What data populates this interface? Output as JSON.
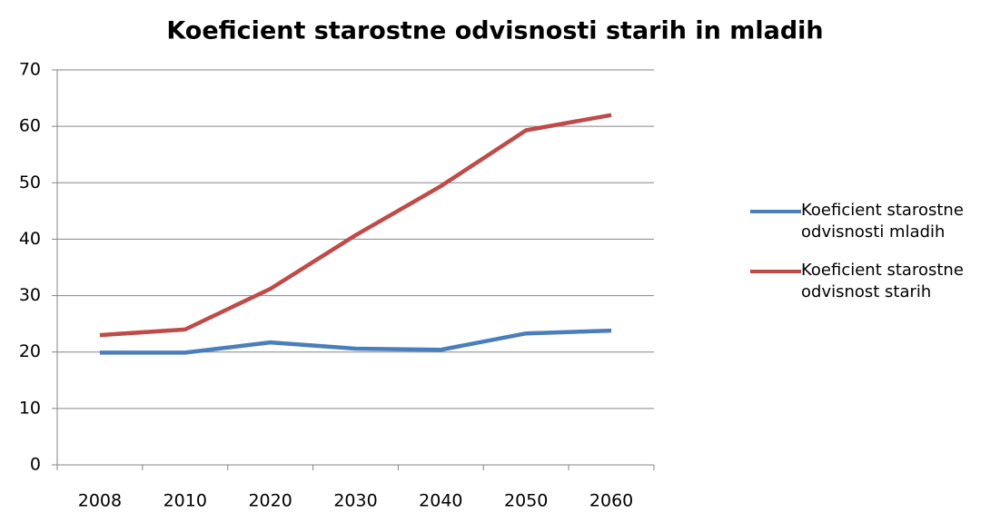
{
  "chart_data": {
    "type": "line",
    "title": "Koeficient starostne odvisnosti starih in mladih",
    "categories": [
      "2008",
      "2010",
      "2020",
      "2030",
      "2040",
      "2050",
      "2060"
    ],
    "series": [
      {
        "name": "Koeficient starostne odvisnosti mladih",
        "color": "#4a7ebb",
        "values": [
          19.9,
          19.9,
          21.7,
          20.6,
          20.4,
          23.3,
          23.8
        ]
      },
      {
        "name": "Koeficient starostne odvisnost starih",
        "color": "#be4b48",
        "values": [
          23.0,
          24.0,
          31.2,
          40.7,
          49.4,
          59.3,
          62.0
        ]
      }
    ],
    "ylim": [
      0,
      70
    ],
    "yticks": [
      0,
      10,
      20,
      30,
      40,
      50,
      60,
      70
    ],
    "grid": true,
    "legend": "right"
  }
}
